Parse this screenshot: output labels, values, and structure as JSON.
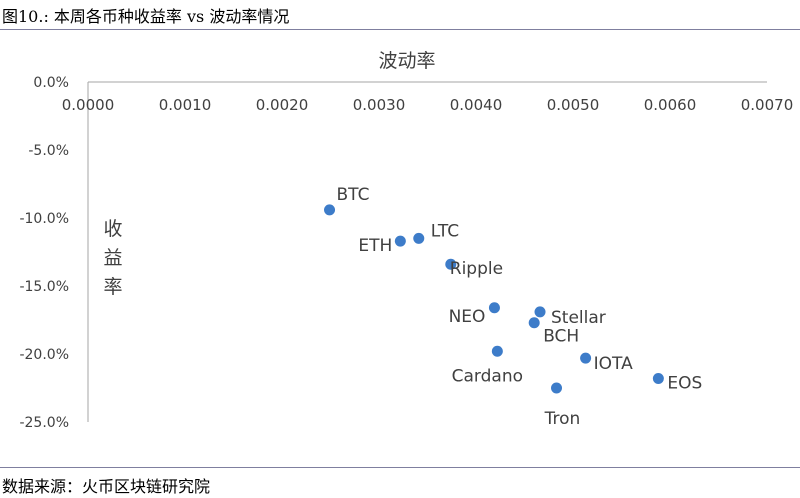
{
  "figure_title": "图10.:  本周各币种收益率 vs 波动率情况",
  "source": "数据来源：火币区块链研究院",
  "chart_data": {
    "type": "scatter",
    "title": "",
    "xlabel": "波动率",
    "ylabel": "收益率",
    "xlim": [
      0,
      0.007
    ],
    "ylim": [
      -25,
      0
    ],
    "x_ticks": [
      "0.0000",
      "0.0010",
      "0.0020",
      "0.0030",
      "0.0040",
      "0.0050",
      "0.0060",
      "0.0070"
    ],
    "y_ticks": [
      "0.0%",
      "-5.0%",
      "-10.0%",
      "-15.0%",
      "-20.0%",
      "-25.0%"
    ],
    "x_axis_position": "top",
    "grid": false,
    "color": "#3d7cc9",
    "points": [
      {
        "label": "BTC",
        "x": 0.00249,
        "y": -9.4
      },
      {
        "label": "ETH",
        "x": 0.00322,
        "y": -11.7
      },
      {
        "label": "LTC",
        "x": 0.00341,
        "y": -11.5
      },
      {
        "label": "Ripple",
        "x": 0.00374,
        "y": -13.4
      },
      {
        "label": "NEO",
        "x": 0.00419,
        "y": -16.6
      },
      {
        "label": "Stellar",
        "x": 0.00466,
        "y": -16.9
      },
      {
        "label": "BCH",
        "x": 0.0046,
        "y": -17.7
      },
      {
        "label": "Cardano",
        "x": 0.00422,
        "y": -19.8
      },
      {
        "label": "IOTA",
        "x": 0.00513,
        "y": -20.3
      },
      {
        "label": "EOS",
        "x": 0.00588,
        "y": -21.8
      },
      {
        "label": "Tron",
        "x": 0.00483,
        "y": -22.5
      }
    ]
  }
}
